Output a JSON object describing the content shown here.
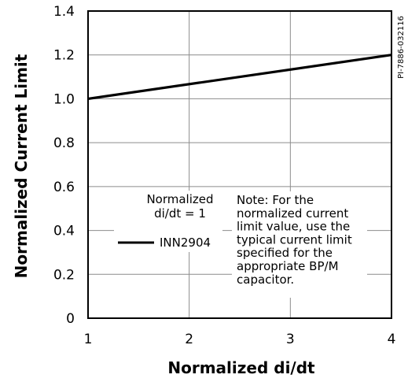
{
  "chart_data": {
    "type": "line",
    "xlabel": "Normalized di/dt",
    "ylabel": "Normalized Current Limit",
    "xlim": [
      1,
      4
    ],
    "ylim": [
      0,
      1.4
    ],
    "x_ticks": [
      "1",
      "2",
      "3",
      "4"
    ],
    "y_ticks": [
      "0",
      "0.2",
      "0.4",
      "0.6",
      "0.8",
      "1.0",
      "1.2",
      "1.4"
    ],
    "grid": true,
    "series": [
      {
        "name": "INN2904",
        "x": [
          1,
          4
        ],
        "y": [
          1.0,
          1.2
        ],
        "color": "#000000"
      }
    ],
    "legend": {
      "title_line1": "Normalized",
      "title_line2": "di/dt = 1",
      "placement": "lower-left"
    },
    "note_lines": [
      "Note: For the",
      "normalized current",
      "limit value, use the",
      "typical current limit",
      "specified for the",
      "appropriate BP/M",
      "capacitor."
    ],
    "figure_id": "PI-7886-032116"
  }
}
